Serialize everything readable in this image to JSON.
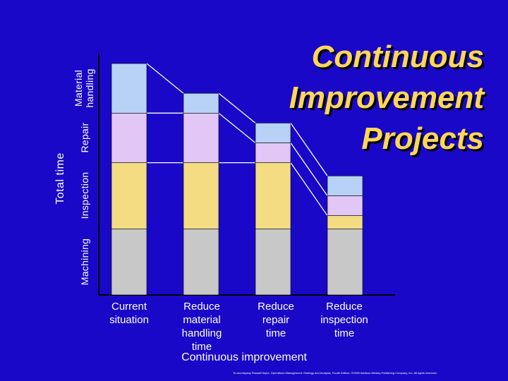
{
  "title_lines": [
    "Continuous",
    "Improvement",
    "Projects"
  ],
  "credit": "To accompany Russell/Taylor, Operations Management: Strategy and Analysis, Fourth Edition, ©1995 Addison-Wesley Publishing Company, Inc. All rights reserved.",
  "colors": {
    "background": "#1a08c8",
    "title": "#ffd65a",
    "machining": "#c8c8c8",
    "inspection": "#f4dc82",
    "repair": "#e2c6f5",
    "material_handling": "#b7d1f7"
  },
  "chart_data": {
    "type": "bar",
    "stacked": true,
    "ylabel": "Total time",
    "xlabel": "Continuous improvement",
    "categories": [
      [
        "Current",
        "situation"
      ],
      [
        "Reduce",
        "material",
        "handling",
        "time"
      ],
      [
        "Reduce",
        "repair",
        "time"
      ],
      [
        "Reduce",
        "inspection",
        "time"
      ]
    ],
    "series": [
      {
        "name": "Machining",
        "values": [
          100,
          100,
          100,
          100
        ]
      },
      {
        "name": "Inspection",
        "values": [
          100,
          100,
          100,
          20
        ]
      },
      {
        "name": "Repair",
        "values": [
          75,
          75,
          30,
          30
        ]
      },
      {
        "name": "Material handling",
        "values": [
          75,
          30,
          30,
          30
        ]
      }
    ],
    "segment_labels": [
      "Machining",
      "Inspection",
      "Repair",
      "Material handling"
    ],
    "connectors": true,
    "grid": false
  }
}
